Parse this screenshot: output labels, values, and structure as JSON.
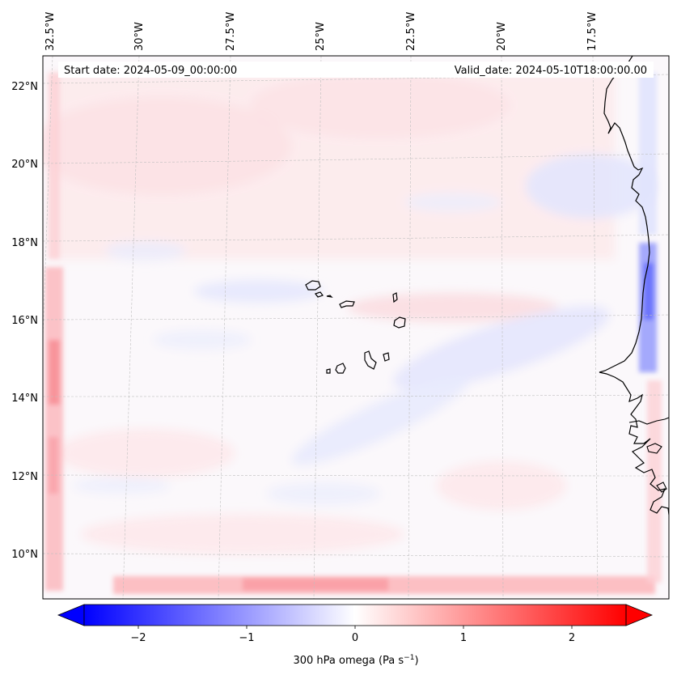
{
  "header": {
    "start_date": "Start date: 2024-05-09_00:00:00",
    "valid_date": "Valid_date: 2024-05-10T18:00:00.00"
  },
  "axes": {
    "lon_labels": [
      "32.5°W",
      "30°W",
      "27.5°W",
      "25°W",
      "22.5°W",
      "20°W",
      "17.5°W"
    ],
    "lat_labels": [
      "22°N",
      "20°N",
      "18°N",
      "16°N",
      "14°N",
      "12°N",
      "10°N"
    ]
  },
  "colorbar": {
    "tick_labels": [
      "−2",
      "−1",
      "0",
      "1",
      "2"
    ],
    "ticks": [
      -2,
      -1,
      0,
      1,
      2
    ],
    "range": [
      -2.5,
      2.5
    ],
    "label": "300 hPa omega (Pa s",
    "label_sup": "−1",
    "label_end": ")",
    "negative_color": "#0000ff",
    "positive_color": "#ff0000"
  },
  "colors": {
    "coast": "#000000",
    "grid": "#bfbfbf"
  }
}
